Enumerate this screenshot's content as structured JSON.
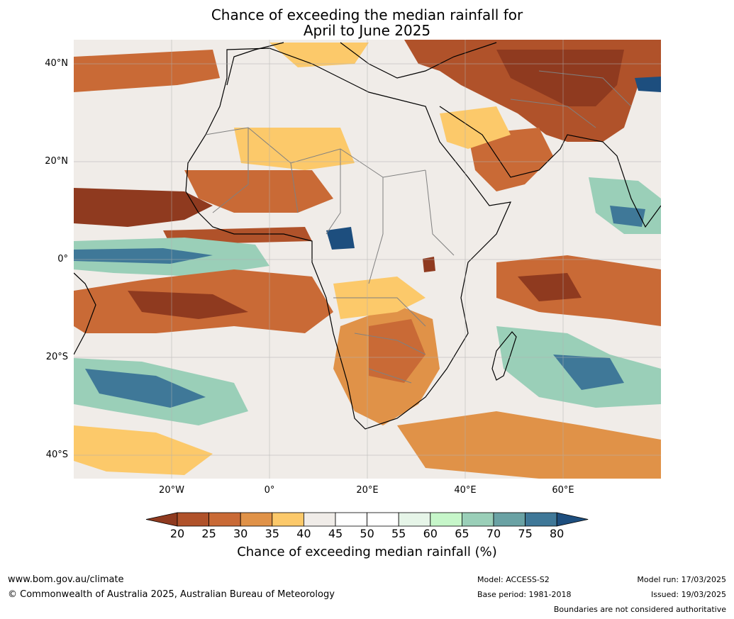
{
  "title_line1": "Chance of exceeding the median rainfall for",
  "title_line2": "April to June 2025",
  "lat_labels": [
    "40°N",
    "20°N",
    "0°",
    "20°S",
    "40°S"
  ],
  "lon_labels": [
    "20°W",
    "0°",
    "20°E",
    "40°E",
    "60°E"
  ],
  "colorbar": {
    "title": "Chance of exceeding median rainfall (%)",
    "ticks": [
      "20",
      "25",
      "30",
      "35",
      "40",
      "45",
      "50",
      "55",
      "60",
      "65",
      "70",
      "75",
      "80"
    ],
    "colors": [
      "#8f3a1f",
      "#b0522a",
      "#c96a36",
      "#e09248",
      "#fcc96a",
      "#f0ece8",
      "#ffffff",
      "#ffffff",
      "#e6f5e8",
      "#c6f6c9",
      "#9acfb8",
      "#6aa2a4",
      "#3f7898",
      "#1d4e7e"
    ]
  },
  "footer": {
    "website": "www.bom.gov.au/climate",
    "copyright": "© Commonwealth of Australia 2025, Australian Bureau of Meteorology",
    "model": "Model: ACCESS-S2",
    "base_period": "Base period: 1981-2018",
    "model_run": "Model run: 17/03/2025",
    "issued": "Issued: 19/03/2025",
    "disclaimer": "Boundaries are not considered authoritative"
  }
}
